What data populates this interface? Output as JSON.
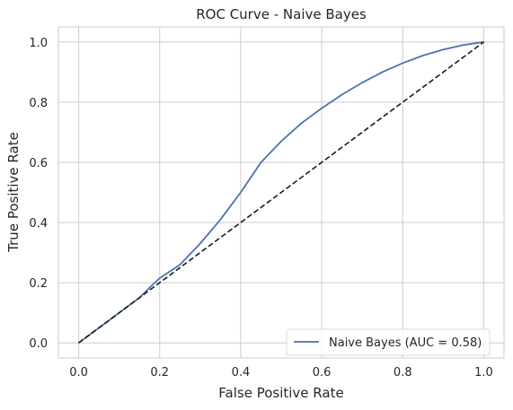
{
  "chart_data": {
    "type": "line",
    "title": "ROC Curve - Naive Bayes",
    "xlabel": "False Positive Rate",
    "ylabel": "True Positive Rate",
    "xlim": [
      -0.05,
      1.05
    ],
    "ylim": [
      -0.05,
      1.05
    ],
    "xticks": [
      0.0,
      0.2,
      0.4,
      0.6,
      0.8,
      1.0
    ],
    "yticks": [
      0.0,
      0.2,
      0.4,
      0.6,
      0.8,
      1.0
    ],
    "xtick_labels": [
      "0.0",
      "0.2",
      "0.4",
      "0.6",
      "0.8",
      "1.0"
    ],
    "ytick_labels": [
      "0.0",
      "0.2",
      "0.4",
      "0.6",
      "0.8",
      "1.0"
    ],
    "grid": true,
    "legend_position": "lower-right",
    "series": [
      {
        "name": "Naive Bayes (AUC = 0.58)",
        "color": "#4c72b0",
        "style": "solid",
        "x": [
          0.0,
          0.05,
          0.1,
          0.15,
          0.18,
          0.2,
          0.25,
          0.3,
          0.35,
          0.4,
          0.45,
          0.5,
          0.55,
          0.6,
          0.65,
          0.7,
          0.75,
          0.8,
          0.85,
          0.9,
          0.95,
          1.0
        ],
        "y": [
          0.0,
          0.05,
          0.1,
          0.15,
          0.19,
          0.215,
          0.26,
          0.33,
          0.41,
          0.5,
          0.6,
          0.67,
          0.73,
          0.78,
          0.825,
          0.865,
          0.9,
          0.93,
          0.955,
          0.975,
          0.99,
          1.0
        ]
      },
      {
        "name": "",
        "color": "#1a1a1a",
        "style": "dashed",
        "x": [
          0.0,
          1.0
        ],
        "y": [
          0.0,
          1.0
        ]
      }
    ]
  }
}
